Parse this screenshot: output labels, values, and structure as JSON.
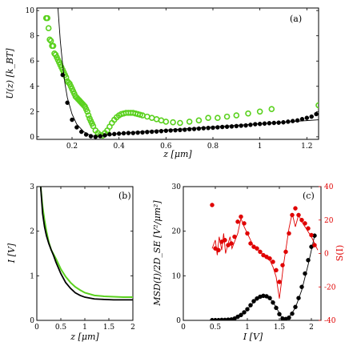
{
  "chart_data": [
    {
      "id": "a",
      "type": "scatter",
      "panel_label": "(a)",
      "xlabel": "z [μm]",
      "ylabel": "U(z) [k_BT]",
      "xlim": [
        0.05,
        1.25
      ],
      "ylim": [
        -0.2,
        10.2
      ],
      "xticks": [
        0.2,
        0.4,
        0.6,
        0.8,
        1,
        1.2
      ],
      "xticklabels": [
        "0.2",
        "0.4",
        "0.6",
        "0.8",
        "1",
        "1.2"
      ],
      "yticks": [
        0,
        2,
        4,
        6,
        8,
        10
      ],
      "yticklabels": [
        "0",
        "2",
        "4",
        "6",
        "8",
        "10"
      ],
      "series": [
        {
          "marker": "open-circle",
          "color": "#5ad11e",
          "x": [
            0.09,
            0.095,
            0.1,
            0.105,
            0.11,
            0.115,
            0.12,
            0.125,
            0.13,
            0.135,
            0.14,
            0.145,
            0.15,
            0.155,
            0.16,
            0.165,
            0.17,
            0.175,
            0.18,
            0.185,
            0.19,
            0.195,
            0.2,
            0.205,
            0.21,
            0.215,
            0.22,
            0.225,
            0.23,
            0.235,
            0.24,
            0.245,
            0.25,
            0.255,
            0.26,
            0.265,
            0.27,
            0.275,
            0.28,
            0.285,
            0.29,
            0.3,
            0.31,
            0.32,
            0.33,
            0.34,
            0.35,
            0.36,
            0.37,
            0.38,
            0.39,
            0.4,
            0.41,
            0.42,
            0.43,
            0.44,
            0.45,
            0.46,
            0.47,
            0.48,
            0.49,
            0.5,
            0.52,
            0.54,
            0.56,
            0.58,
            0.6,
            0.63,
            0.66,
            0.7,
            0.74,
            0.78,
            0.82,
            0.86,
            0.9,
            0.95,
            1.0,
            1.05,
            1.25
          ],
          "y": [
            9.4,
            9.4,
            8.6,
            7.7,
            7.6,
            7.2,
            7.2,
            6.6,
            6.5,
            6.3,
            6.1,
            5.9,
            5.7,
            5.5,
            5.3,
            5.1,
            4.9,
            4.7,
            4.4,
            4.3,
            4.2,
            4.0,
            3.8,
            3.6,
            3.4,
            3.2,
            3.1,
            3.0,
            2.9,
            2.8,
            2.7,
            2.6,
            2.5,
            2.4,
            2.2,
            2.0,
            1.7,
            1.45,
            1.25,
            1.05,
            0.85,
            0.5,
            0.3,
            0.15,
            0.1,
            0.3,
            0.5,
            0.8,
            1.1,
            1.35,
            1.55,
            1.7,
            1.8,
            1.85,
            1.9,
            1.9,
            1.9,
            1.9,
            1.85,
            1.8,
            1.75,
            1.7,
            1.6,
            1.5,
            1.4,
            1.3,
            1.2,
            1.15,
            1.1,
            1.2,
            1.3,
            1.5,
            1.5,
            1.6,
            1.7,
            1.85,
            2.0,
            2.2,
            2.5
          ]
        },
        {
          "marker": "filled-circle",
          "color": "#000000",
          "x": [
            0.16,
            0.18,
            0.2,
            0.22,
            0.24,
            0.26,
            0.28,
            0.3,
            0.32,
            0.34,
            0.36,
            0.38,
            0.4,
            0.42,
            0.44,
            0.46,
            0.48,
            0.5,
            0.52,
            0.54,
            0.56,
            0.58,
            0.6,
            0.62,
            0.64,
            0.66,
            0.68,
            0.7,
            0.72,
            0.74,
            0.76,
            0.78,
            0.8,
            0.82,
            0.84,
            0.86,
            0.88,
            0.9,
            0.92,
            0.94,
            0.96,
            0.98,
            1.0,
            1.02,
            1.04,
            1.06,
            1.08,
            1.1,
            1.12,
            1.14,
            1.16,
            1.18,
            1.2,
            1.22,
            1.24
          ],
          "y": [
            4.9,
            2.7,
            1.35,
            0.75,
            0.4,
            0.18,
            0.05,
            0.0,
            0.05,
            0.12,
            0.2,
            0.22,
            0.25,
            0.28,
            0.3,
            0.3,
            0.33,
            0.35,
            0.38,
            0.4,
            0.42,
            0.45,
            0.48,
            0.5,
            0.52,
            0.54,
            0.56,
            0.6,
            0.62,
            0.65,
            0.68,
            0.7,
            0.72,
            0.75,
            0.78,
            0.8,
            0.82,
            0.85,
            0.88,
            0.9,
            0.95,
            1.0,
            1.02,
            1.05,
            1.08,
            1.1,
            1.12,
            1.15,
            1.2,
            1.25,
            1.3,
            1.4,
            1.5,
            1.6,
            1.8
          ]
        },
        {
          "marker": "line",
          "color": "#000000",
          "x": [
            0.14,
            0.15,
            0.16,
            0.17,
            0.18,
            0.2,
            0.22,
            0.25,
            0.28,
            0.31,
            0.34,
            0.38,
            0.45,
            0.55,
            0.65,
            0.75,
            0.85,
            0.95,
            1.05,
            1.15,
            1.25
          ],
          "y": [
            10.2,
            7.6,
            5.7,
            4.2,
            3.1,
            1.8,
            1.0,
            0.4,
            0.1,
            0.0,
            0.1,
            0.22,
            0.35,
            0.48,
            0.6,
            0.72,
            0.85,
            0.98,
            1.1,
            1.22,
            1.35
          ]
        }
      ]
    },
    {
      "id": "b",
      "type": "line",
      "panel_label": "(b)",
      "xlabel": "z [μm]",
      "ylabel": "I [V]",
      "xlim": [
        0,
        2
      ],
      "ylim": [
        0,
        3
      ],
      "xticks": [
        0,
        0.5,
        1,
        1.5,
        2
      ],
      "xticklabels": [
        "0",
        "0.5",
        "1",
        "1.5",
        "2"
      ],
      "yticks": [
        0,
        1,
        2,
        3
      ],
      "yticklabels": [
        "0",
        "1",
        "2",
        "3"
      ],
      "series": [
        {
          "color": "#5ad11e",
          "x": [
            0.08,
            0.12,
            0.16,
            0.2,
            0.25,
            0.3,
            0.35,
            0.4,
            0.5,
            0.6,
            0.7,
            0.8,
            0.9,
            1.0,
            1.2,
            1.4,
            1.6,
            1.8,
            2.0
          ],
          "y": [
            3.0,
            2.55,
            2.25,
            2.0,
            1.75,
            1.58,
            1.48,
            1.38,
            1.15,
            0.98,
            0.85,
            0.75,
            0.68,
            0.62,
            0.56,
            0.54,
            0.53,
            0.52,
            0.52
          ]
        },
        {
          "color": "#000000",
          "x": [
            0.08,
            0.12,
            0.16,
            0.2,
            0.25,
            0.3,
            0.35,
            0.4,
            0.5,
            0.6,
            0.7,
            0.8,
            0.9,
            1.0,
            1.2,
            1.4,
            1.6,
            1.8,
            2.0
          ],
          "y": [
            3.0,
            2.4,
            2.1,
            1.9,
            1.72,
            1.58,
            1.45,
            1.3,
            1.05,
            0.85,
            0.72,
            0.62,
            0.56,
            0.52,
            0.48,
            0.47,
            0.46,
            0.46,
            0.46
          ]
        }
      ]
    },
    {
      "id": "c",
      "type": "scatter",
      "panel_label": "(c)",
      "xlabel": "I [V]",
      "ylabel": "MSD(I)/2D_SE [V²/μm²]",
      "ylabel_right": "S(I)",
      "xlim": [
        0,
        2.15
      ],
      "ylim": [
        0,
        30
      ],
      "ylim_right": [
        -40,
        40
      ],
      "xticks": [
        0,
        0.5,
        1,
        1.5,
        2
      ],
      "xticklabels": [
        "0",
        "0.5",
        "1",
        "1.5",
        "2"
      ],
      "yticks": [
        0,
        10,
        20,
        30
      ],
      "yticklabels": [
        "0",
        "10",
        "20",
        "30"
      ],
      "yticks_right": [
        -40,
        -20,
        0,
        20,
        40
      ],
      "yticklabels_right": [
        "-40",
        "-20",
        "0",
        "20",
        "40"
      ],
      "series": [
        {
          "axis": "left",
          "marker": "filled-circle",
          "color": "#000000",
          "x": [
            0.45,
            0.5,
            0.55,
            0.6,
            0.65,
            0.7,
            0.75,
            0.8,
            0.85,
            0.9,
            0.95,
            1.0,
            1.05,
            1.1,
            1.15,
            1.2,
            1.25,
            1.3,
            1.35,
            1.4,
            1.45,
            1.5,
            1.55,
            1.6,
            1.65,
            1.7,
            1.75,
            1.8,
            1.85,
            1.9,
            1.95,
            2.0,
            2.05
          ],
          "y": [
            0.05,
            0.05,
            0.05,
            0.1,
            0.1,
            0.15,
            0.2,
            0.4,
            0.8,
            1.2,
            1.8,
            2.5,
            3.4,
            4.3,
            4.9,
            5.3,
            5.5,
            5.4,
            5.0,
            4.0,
            2.8,
            1.4,
            0.4,
            0.3,
            0.6,
            1.5,
            3.0,
            5.0,
            7.5,
            10.5,
            13.5,
            16.5,
            19.0
          ]
        },
        {
          "axis": "left",
          "marker": "line",
          "color": "#000000",
          "x": [
            0.45,
            0.6,
            0.75,
            0.85,
            0.95,
            1.05,
            1.15,
            1.25,
            1.35,
            1.45,
            1.52,
            1.58,
            1.65,
            1.75,
            1.85,
            1.95,
            2.05
          ],
          "y": [
            0.0,
            0.05,
            0.2,
            0.7,
            1.7,
            3.3,
            4.8,
            5.5,
            5.0,
            3.0,
            1.0,
            0.4,
            0.7,
            2.8,
            6.8,
            12.5,
            19.0
          ]
        },
        {
          "axis": "right",
          "marker": "filled-circle",
          "color": "#e00000",
          "x": [
            0.45,
            0.5,
            0.55,
            0.6,
            0.65,
            0.7,
            0.75,
            0.8,
            0.85,
            0.9,
            0.95,
            1.0,
            1.05,
            1.1,
            1.15,
            1.2,
            1.25,
            1.3,
            1.35,
            1.4,
            1.45,
            1.5,
            1.55,
            1.6,
            1.65,
            1.7,
            1.75,
            1.8,
            1.85,
            1.9,
            1.95,
            2.0,
            2.05
          ],
          "y": [
            29,
            3,
            2,
            7,
            8,
            5,
            6,
            10,
            19,
            22,
            18,
            12,
            6,
            4,
            3,
            1,
            -1,
            -2,
            -3,
            -5,
            -10,
            -17,
            -7,
            1,
            12,
            23,
            27,
            23,
            20,
            18,
            15,
            11,
            5
          ]
        },
        {
          "axis": "right",
          "marker": "line",
          "color": "#e00000",
          "x": [
            0.45,
            0.5,
            0.53,
            0.56,
            0.6,
            0.63,
            0.66,
            0.7,
            0.73,
            0.76,
            0.8,
            0.85,
            0.9,
            0.95,
            1.0,
            1.05,
            1.1,
            1.15,
            1.2,
            1.25,
            1.3,
            1.35,
            1.4,
            1.45,
            1.5,
            1.53,
            1.56,
            1.6,
            1.65,
            1.7,
            1.75,
            1.8,
            1.85,
            1.9,
            1.95,
            2.0,
            2.05,
            2.1
          ],
          "y": [
            3,
            8,
            -1,
            10,
            2,
            12,
            0,
            6,
            10,
            3,
            7,
            12,
            21,
            16,
            12,
            8,
            4,
            3,
            1,
            -1,
            -3,
            -4,
            -8,
            -14,
            -27,
            -18,
            -8,
            2,
            15,
            24,
            16,
            23,
            19,
            16,
            13,
            10,
            6,
            2
          ]
        }
      ]
    }
  ]
}
